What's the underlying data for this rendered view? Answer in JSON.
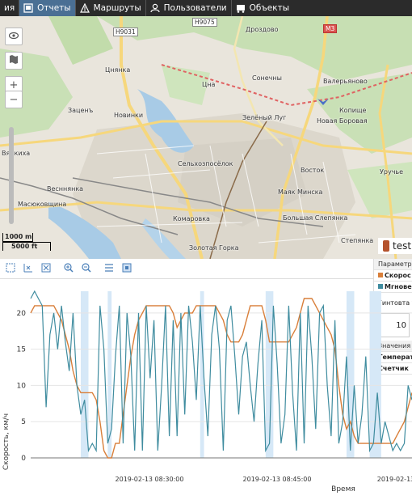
{
  "nav": {
    "items": [
      {
        "label": "ия",
        "icon": "report-icon",
        "active": false
      },
      {
        "label": "Отчеты",
        "icon": "report-icon",
        "active": true
      },
      {
        "label": "Маршруты",
        "icon": "route-icon",
        "active": false
      },
      {
        "label": "Пользователи",
        "icon": "users-icon",
        "active": false
      },
      {
        "label": "Объекты",
        "icon": "truck-icon",
        "active": false
      }
    ]
  },
  "map": {
    "places": [
      "Дроздово",
      "Цнянка",
      "Цна",
      "Сонечны",
      "Валерьяново",
      "Заценъ",
      "Новинки",
      "Копище",
      "Новая Боровая",
      "Зелёный Луг",
      "Вянкиха",
      "Сельхозпосёлок",
      "Восток",
      "Уручье",
      "Весннянка",
      "Масюковщина",
      "Маяк Минска",
      "Комаровка",
      "Большая Слепянка",
      "Золотая Горка",
      "Степянка"
    ],
    "shields": [
      "H9031",
      "H9075",
      "M3"
    ],
    "scale_m": "1000 m",
    "scale_ft": "5000 ft",
    "object_name": "test"
  },
  "colors": {
    "accent": "#4a6f94",
    "series1": "#d97f3a",
    "series2": "#3f8c9f",
    "highlight": "#d6e8f7"
  },
  "side_panel": {
    "params_header": "Параметр",
    "series1_label": "Скорос",
    "series2_label": "Мгнове",
    "hint_label": "Гинтовта ул",
    "value": "10",
    "values_header": "Значения",
    "row1": "Температ",
    "row2": "Счетчик"
  },
  "chart_data": {
    "type": "line",
    "ylabel": "Скорость, км/ч",
    "xlabel": "Время",
    "ylim": [
      0,
      23
    ],
    "yticks": [
      0,
      5,
      10,
      15,
      20
    ],
    "xticks": [
      "2019-02-13 08:30:00",
      "2019-02-13 08:45:00",
      "2019-02-13"
    ],
    "x": [
      0,
      1,
      2,
      3,
      4,
      5,
      6,
      7,
      8,
      9,
      10,
      11,
      12,
      13,
      14,
      15,
      16,
      17,
      18,
      19,
      20,
      21,
      22,
      23,
      24,
      25,
      26,
      27,
      28,
      29,
      30,
      31,
      32,
      33,
      34,
      35,
      36,
      37,
      38,
      39,
      40,
      41,
      42,
      43,
      44,
      45,
      46,
      47,
      48,
      49,
      50,
      51,
      52,
      53,
      54,
      55,
      56,
      57,
      58,
      59,
      60,
      61,
      62,
      63,
      64,
      65,
      66,
      67,
      68,
      69,
      70,
      71,
      72,
      73,
      74,
      75,
      76,
      77,
      78,
      79,
      80,
      81,
      82,
      83,
      84,
      85,
      86,
      87,
      88,
      89,
      90,
      91,
      92,
      93,
      94,
      95,
      96,
      97,
      98,
      99
    ],
    "series": [
      {
        "name": "Скорос",
        "values": [
          20,
          21,
          21,
          21,
          21,
          21,
          21,
          20,
          19,
          17,
          15,
          12,
          10,
          9,
          9,
          9,
          9,
          8,
          5,
          1,
          0,
          0,
          2,
          2,
          6,
          10,
          14,
          17,
          19,
          20,
          21,
          21,
          21,
          21,
          21,
          21,
          21,
          20,
          18,
          19,
          20,
          20,
          20,
          21,
          21,
          21,
          21,
          21,
          21,
          20,
          19,
          17,
          16,
          16,
          16,
          17,
          19,
          21,
          21,
          21,
          21,
          19,
          16,
          16,
          16,
          16,
          16,
          16,
          17,
          18,
          20,
          22,
          22,
          22,
          21,
          20,
          19,
          18,
          17,
          15,
          10,
          6,
          4,
          5,
          3,
          2,
          2,
          2,
          2,
          2,
          2,
          2,
          2,
          2,
          2,
          3,
          4,
          5,
          7,
          9
        ]
      },
      {
        "name": "Мгнове",
        "values": [
          22,
          23,
          22,
          21,
          7,
          17,
          20,
          15,
          21,
          16,
          12,
          20,
          10,
          6,
          8,
          1,
          2,
          1,
          21,
          15,
          2,
          4,
          14,
          21,
          2,
          20,
          14,
          1,
          20,
          1,
          21,
          11,
          19,
          1,
          10,
          21,
          3,
          19,
          3,
          20,
          6,
          21,
          16,
          8,
          21,
          11,
          3,
          17,
          21,
          15,
          1,
          19,
          21,
          14,
          6,
          14,
          16,
          10,
          5,
          13,
          19,
          1,
          2,
          21,
          13,
          2,
          6,
          21,
          9,
          1,
          20,
          2,
          21,
          14,
          4,
          20,
          21,
          10,
          3,
          19,
          2,
          5,
          14,
          1,
          10,
          2,
          6,
          14,
          1,
          2,
          9,
          2,
          5,
          3,
          1,
          2,
          1,
          2,
          10,
          8
        ]
      }
    ]
  }
}
